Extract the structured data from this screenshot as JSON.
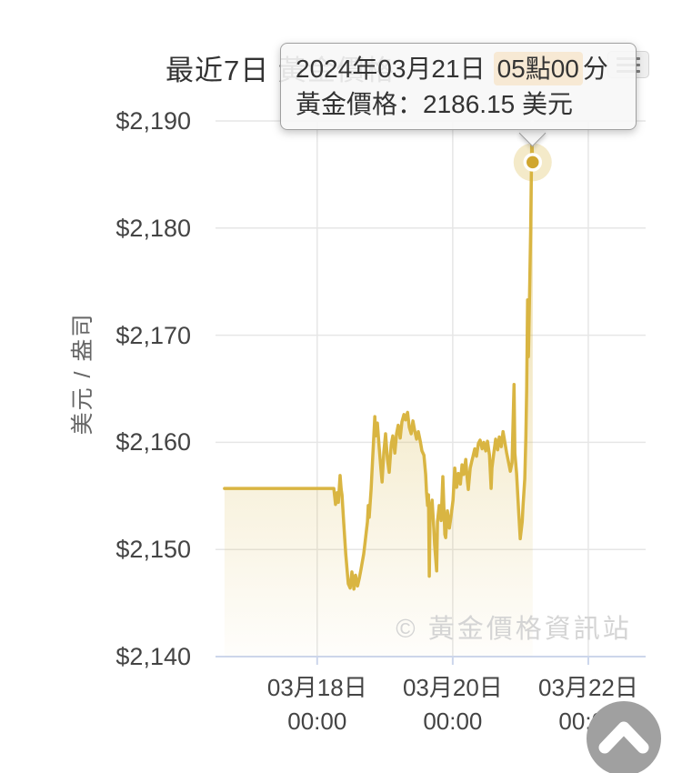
{
  "title": "最近7日 黃金價格",
  "watermark": "© 黃金價格資訊站",
  "tooltip": {
    "date": "2024年03月21日",
    "time_highlight": "05點00",
    "time_suffix": "分",
    "price_label": "黃金價格：",
    "price_value": "2186.15",
    "price_unit": " 美元"
  },
  "icons": {
    "menu": "hamburger-icon",
    "scroll_top": "chevron-up-icon"
  },
  "colors": {
    "line": "#d9b542",
    "marker": "#d0a62f",
    "marker_ring": "#ffffff",
    "halo": "rgba(214,178,60,0.28)",
    "area_top": "rgba(214,178,60,0.5)",
    "area_bottom": "rgba(214,178,60,0.02)",
    "grid": "#e6e6e6",
    "axis": "#ccd6eb",
    "tooltip_highlight": "#f7e9d4"
  },
  "chart_data": {
    "type": "area",
    "title": "最近7日 黃金價格",
    "ylabel": "美元 / 盎司",
    "xlabel": "",
    "legend": "none",
    "grid": "on",
    "ylim": [
      2140,
      2190
    ],
    "ytick_values": [
      2190,
      2180,
      2170,
      2160,
      2150,
      2140
    ],
    "ytick_labels": [
      "$2,190",
      "$2,180",
      "$2,170",
      "$2,160",
      "$2,150",
      "$2,140"
    ],
    "x_unit": "hours since 2024-03-16 00:00",
    "xlim_hours": [
      12,
      164.3
    ],
    "xtick_hours": [
      48,
      96,
      144
    ],
    "xtick_labels": [
      [
        "03月18日",
        "00:00"
      ],
      [
        "03月20日",
        "00:00"
      ],
      [
        "03月22日",
        "00:00"
      ]
    ],
    "highlight_point": {
      "hour": 124.3,
      "price": 2186.15,
      "label": "2024年03月21日 05點00分",
      "value_text": "2186.15 美元"
    },
    "series": [
      {
        "name": "黃金價格",
        "points": [
          [
            15.2,
            2155.7
          ],
          [
            53.9,
            2155.7
          ],
          [
            54.5,
            2154.2
          ],
          [
            55.1,
            2155.3
          ],
          [
            55.5,
            2154.4
          ],
          [
            56.1,
            2156.9
          ],
          [
            56.5,
            2155.6
          ],
          [
            56.8,
            2155.1
          ],
          [
            57.4,
            2152.5
          ],
          [
            58.1,
            2149.6
          ],
          [
            59,
            2146.8
          ],
          [
            59.7,
            2146.4
          ],
          [
            60.3,
            2147.9
          ],
          [
            61,
            2146.3
          ],
          [
            61.6,
            2147.6
          ],
          [
            62.3,
            2146.6
          ],
          [
            62.9,
            2147.3
          ],
          [
            63.5,
            2148.1
          ],
          [
            64.5,
            2149.6
          ],
          [
            65.2,
            2151.2
          ],
          [
            65.8,
            2152.6
          ],
          [
            66.1,
            2154.1
          ],
          [
            66.4,
            2153
          ],
          [
            67.1,
            2155.6
          ],
          [
            67.7,
            2158.8
          ],
          [
            68.4,
            2162.4
          ],
          [
            68.7,
            2160.6
          ],
          [
            69.3,
            2161.8
          ],
          [
            70,
            2159.4
          ],
          [
            70.6,
            2157.4
          ],
          [
            71,
            2156.3
          ],
          [
            71.6,
            2159.1
          ],
          [
            72.2,
            2160.8
          ],
          [
            72.9,
            2158.4
          ],
          [
            73.5,
            2157.2
          ],
          [
            74.2,
            2159.8
          ],
          [
            74.8,
            2160.6
          ],
          [
            75.5,
            2159
          ],
          [
            76.1,
            2160.8
          ],
          [
            76.7,
            2161.6
          ],
          [
            77.4,
            2160.4
          ],
          [
            78,
            2161.9
          ],
          [
            78.7,
            2162.6
          ],
          [
            79.3,
            2162.1
          ],
          [
            80,
            2162.8
          ],
          [
            80.6,
            2161.4
          ],
          [
            81.3,
            2160.8
          ],
          [
            81.9,
            2162
          ],
          [
            82.5,
            2161.1
          ],
          [
            83.2,
            2160.3
          ],
          [
            83.8,
            2161
          ],
          [
            84.5,
            2160.1
          ],
          [
            85.1,
            2159.2
          ],
          [
            85.8,
            2158.8
          ],
          [
            86.4,
            2157
          ],
          [
            86.7,
            2155.4
          ],
          [
            87.1,
            2154.1
          ],
          [
            87.4,
            2155.1
          ],
          [
            87.7,
            2147.5
          ],
          [
            88,
            2153.4
          ],
          [
            88.7,
            2154.6
          ],
          [
            89.3,
            2151.9
          ],
          [
            89.6,
            2150.4
          ],
          [
            90.3,
            2148
          ],
          [
            90.6,
            2152.6
          ],
          [
            91.2,
            2154.1
          ],
          [
            91.9,
            2152.7
          ],
          [
            92.5,
            2156.8
          ],
          [
            93.2,
            2151.4
          ],
          [
            93.5,
            2151.1
          ],
          [
            94.1,
            2153.6
          ],
          [
            94.8,
            2152
          ],
          [
            95.4,
            2153.1
          ],
          [
            96.1,
            2154.6
          ],
          [
            96.7,
            2157.6
          ],
          [
            97.4,
            2155.8
          ],
          [
            98,
            2157.1
          ],
          [
            98.7,
            2156.1
          ],
          [
            99.3,
            2157.9
          ],
          [
            99.9,
            2157
          ],
          [
            100.6,
            2158.4
          ],
          [
            101.2,
            2156.4
          ],
          [
            101.5,
            2155.6
          ],
          [
            102.2,
            2157.6
          ],
          [
            102.8,
            2158.3
          ],
          [
            103.2,
            2158.7
          ],
          [
            103.8,
            2159.4
          ],
          [
            104.4,
            2158.7
          ],
          [
            105.1,
            2159.9
          ],
          [
            105.7,
            2160.2
          ],
          [
            106.4,
            2159.4
          ],
          [
            107,
            2160
          ],
          [
            107.7,
            2159.2
          ],
          [
            108.3,
            2160.1
          ],
          [
            109,
            2158.8
          ],
          [
            109.6,
            2155.7
          ],
          [
            109.9,
            2157.6
          ],
          [
            110.6,
            2159.1
          ],
          [
            111.2,
            2160.3
          ],
          [
            111.9,
            2159.3
          ],
          [
            112.5,
            2160.5
          ],
          [
            113.2,
            2159.6
          ],
          [
            113.8,
            2161
          ],
          [
            114.4,
            2160.1
          ],
          [
            115.1,
            2159
          ],
          [
            115.7,
            2158.2
          ],
          [
            116.4,
            2157.3
          ],
          [
            117,
            2158.1
          ],
          [
            117.7,
            2165.4
          ],
          [
            118,
            2159
          ],
          [
            118.6,
            2157.1
          ],
          [
            119.3,
            2153.8
          ],
          [
            119.9,
            2151
          ],
          [
            120.6,
            2152.6
          ],
          [
            120.9,
            2154.1
          ],
          [
            121.5,
            2156.6
          ],
          [
            121.9,
            2160.5
          ],
          [
            122.2,
            2165
          ],
          [
            122.5,
            2173.3
          ],
          [
            122.8,
            2168
          ],
          [
            123.2,
            2174
          ],
          [
            123.6,
            2180
          ],
          [
            124,
            2188.3
          ],
          [
            124.3,
            2186.15
          ]
        ]
      }
    ]
  }
}
